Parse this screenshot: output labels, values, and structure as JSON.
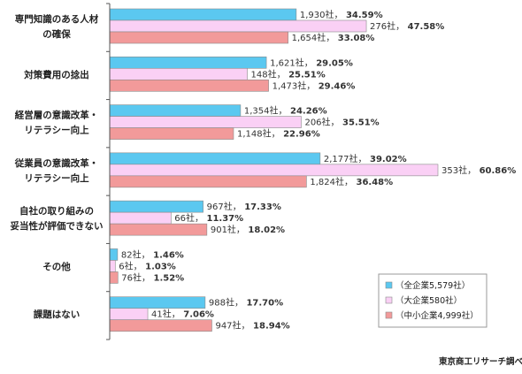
{
  "chart_data": {
    "type": "bar",
    "orientation": "horizontal",
    "categories": [
      [
        "専門知識のある人材",
        "の確保"
      ],
      [
        "対策費用の捻出"
      ],
      [
        "経営層の意識改革・",
        "リテラシー向上"
      ],
      [
        "従業員の意識改革・",
        "リテラシー向上"
      ],
      [
        "自社の取り組みの",
        "妥当性が評価できない"
      ],
      [
        "その他"
      ],
      [
        "課題はない"
      ]
    ],
    "series": [
      {
        "name": "（全企業5,579社）",
        "color": "#5BC8F0",
        "counts": [
          "1,930社",
          "1,621社",
          "1,354社",
          "2,177社",
          "967社",
          "82社",
          "988社"
        ],
        "values": [
          34.59,
          29.05,
          24.26,
          39.02,
          17.33,
          1.46,
          17.7
        ],
        "pct_labels": [
          "34.59%",
          "29.05%",
          "24.26%",
          "39.02%",
          "17.33%",
          "1.46%",
          "17.70%"
        ]
      },
      {
        "name": "（大企業580社）",
        "color": "#FAD0F5",
        "counts": [
          "276社",
          "148社",
          "206社",
          "353社",
          "66社",
          "6社",
          "41社"
        ],
        "values": [
          47.58,
          25.51,
          35.51,
          60.86,
          11.37,
          1.03,
          7.06
        ],
        "pct_labels": [
          "47.58%",
          "25.51%",
          "35.51%",
          "60.86%",
          "11.37%",
          "1.03%",
          "7.06%"
        ]
      },
      {
        "name": "（中小企業4,999社）",
        "color": "#F29A9A",
        "counts": [
          "1,654社",
          "1,473社",
          "1,148社",
          "1,824社",
          "901社",
          "76社",
          "947社"
        ],
        "values": [
          33.08,
          29.46,
          22.96,
          36.48,
          18.02,
          1.52,
          18.94
        ],
        "pct_labels": [
          "33.08%",
          "29.46%",
          "22.96%",
          "36.48%",
          "18.02%",
          "1.52%",
          "18.94%"
        ]
      }
    ],
    "xlim": [
      0,
      60.86
    ],
    "grid": false,
    "legend_position": "bottom-right"
  },
  "source": "東京商工リサーチ調べ"
}
